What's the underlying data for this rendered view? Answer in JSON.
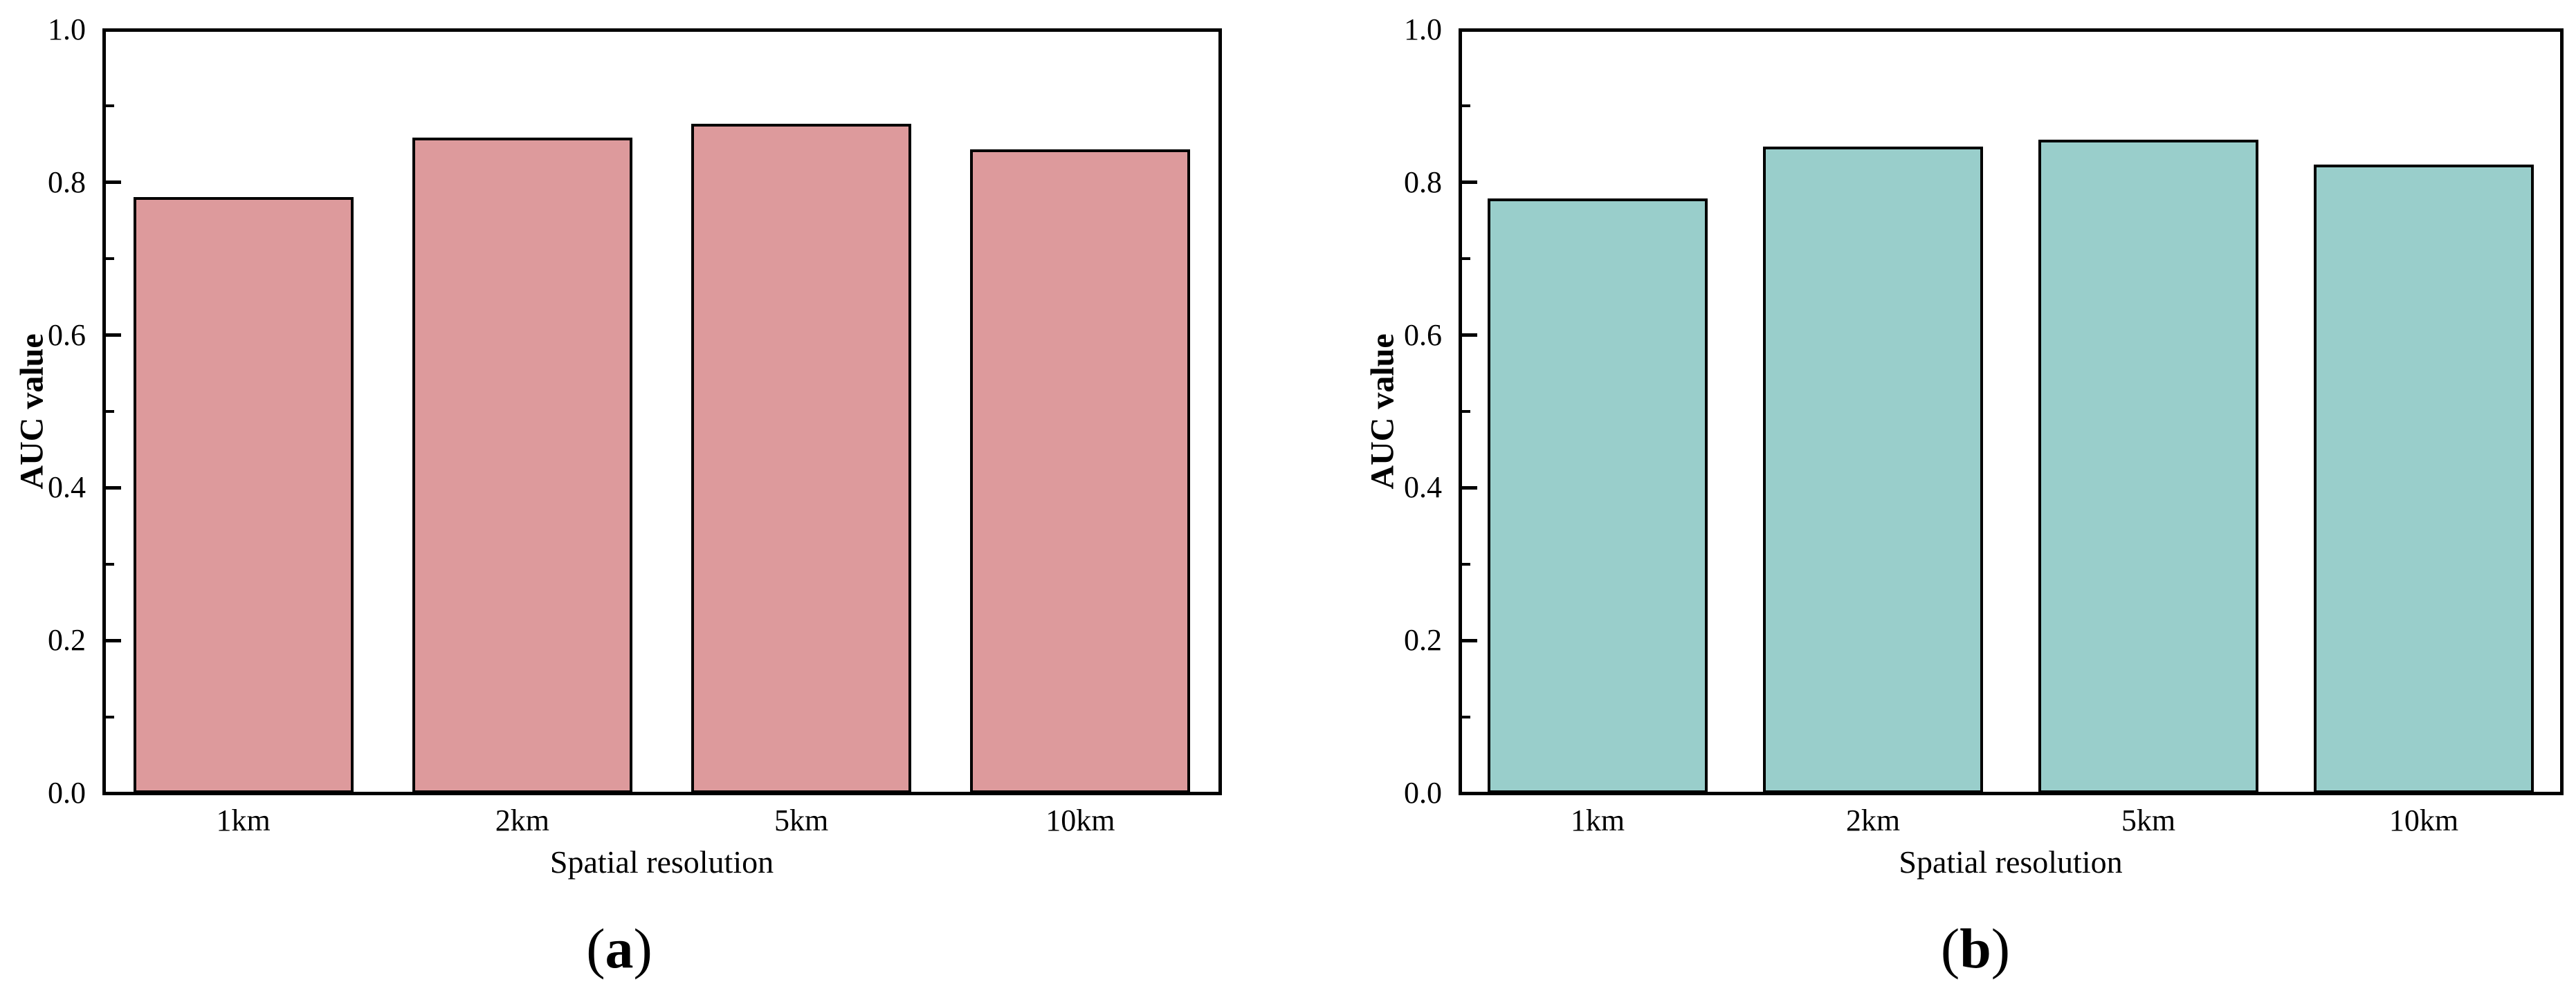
{
  "page": {
    "background": "#ffffff",
    "text_color": "#000000"
  },
  "chart_data": [
    {
      "type": "bar",
      "panel": "a",
      "xlabel": "Spatial resolution",
      "ylabel": "AUC value",
      "categories": [
        "1km",
        "2km",
        "5km",
        "10km"
      ],
      "values": [
        0.781,
        0.859,
        0.877,
        0.843
      ],
      "ylim": [
        0,
        1
      ],
      "y_major_ticks": [
        0.0,
        0.2,
        0.4,
        0.6,
        0.8,
        1.0
      ],
      "y_tick_labels": [
        "0.0",
        "0.2",
        "0.4",
        "0.6",
        "0.8",
        "1.0"
      ],
      "y_minor_tick_step": 0.1,
      "grid": false,
      "legend": "none",
      "bar_fill": "#DD9A9C",
      "bar_edge": "#000000",
      "caption": {
        "open": "(",
        "letter": "a",
        "close": ")"
      }
    },
    {
      "type": "bar",
      "panel": "b",
      "xlabel": "Spatial resolution",
      "ylabel": "AUC value",
      "categories": [
        "1km",
        "2km",
        "5km",
        "10km"
      ],
      "values": [
        0.779,
        0.847,
        0.856,
        0.823
      ],
      "ylim": [
        0,
        1
      ],
      "y_major_ticks": [
        0.0,
        0.2,
        0.4,
        0.6,
        0.8,
        1.0
      ],
      "y_tick_labels": [
        "0.0",
        "0.2",
        "0.4",
        "0.6",
        "0.8",
        "1.0"
      ],
      "y_minor_tick_step": 0.1,
      "grid": false,
      "legend": "none",
      "bar_fill": "#99CECB",
      "bar_edge": "#000000",
      "caption": {
        "open": "(",
        "letter": "b",
        "close": ")"
      }
    }
  ]
}
